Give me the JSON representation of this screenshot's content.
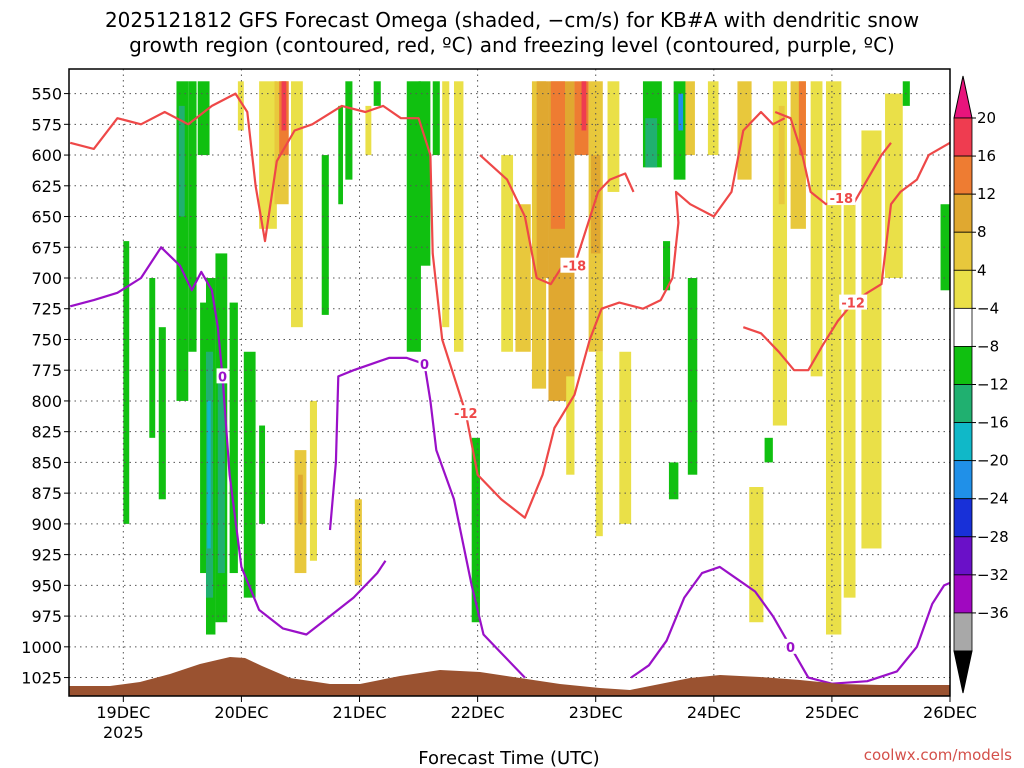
{
  "chart_data": {
    "type": "heatmap",
    "title_line1": "2025121812 GFS Forecast Omega (shaded, −cm/s) for KB#A with dendritic snow",
    "title_line2": "growth region (contoured, red, ºC) and freezing level (contoured, purple, ºC)",
    "xlabel": "Forecast Time (UTC)",
    "credit": "coolwx.com/models",
    "x_start_day": 18.54,
    "x_end_day": 26.0,
    "y_range": [
      530,
      1040
    ],
    "x_ticks": [
      {
        "day": 19,
        "label": "19DEC",
        "sub": "2025"
      },
      {
        "day": 20,
        "label": "20DEC",
        "sub": ""
      },
      {
        "day": 21,
        "label": "21DEC",
        "sub": ""
      },
      {
        "day": 22,
        "label": "22DEC",
        "sub": ""
      },
      {
        "day": 23,
        "label": "23DEC",
        "sub": ""
      },
      {
        "day": 24,
        "label": "24DEC",
        "sub": ""
      },
      {
        "day": 25,
        "label": "25DEC",
        "sub": ""
      },
      {
        "day": 26,
        "label": "26DEC",
        "sub": ""
      }
    ],
    "y_ticks": [
      550,
      575,
      600,
      625,
      650,
      675,
      700,
      725,
      750,
      775,
      800,
      825,
      850,
      875,
      900,
      925,
      950,
      975,
      1000,
      1025
    ],
    "colorbar": {
      "labels": [
        "20",
        "16",
        "12",
        "8",
        "4",
        "−4",
        "−8",
        "−12",
        "−16",
        "−20",
        "−24",
        "−28",
        "−32",
        "−36"
      ],
      "colors": [
        "#ef3c50",
        "#ee7c32",
        "#e0a830",
        "#e8c83c",
        "#eae048",
        "#ffffff",
        "#10c010",
        "#20b070",
        "#10b8c8",
        "#2090e8",
        "#1830d8",
        "#6a10c8",
        "#a008c0",
        "#a8a8a8"
      ],
      "top_color": "#e8147c",
      "bottom_color": "#000000"
    },
    "omega_patches": [
      {
        "x0": 19.0,
        "x1": 19.05,
        "p0": 670,
        "p1": 900,
        "c": "#10c010"
      },
      {
        "x0": 19.22,
        "x1": 19.27,
        "p0": 700,
        "p1": 830,
        "c": "#10c010"
      },
      {
        "x0": 19.3,
        "x1": 19.36,
        "p0": 740,
        "p1": 880,
        "c": "#10c010"
      },
      {
        "x0": 19.45,
        "x1": 19.55,
        "p0": 540,
        "p1": 800,
        "c": "#10c010"
      },
      {
        "x0": 19.47,
        "x1": 19.52,
        "p0": 560,
        "p1": 650,
        "c": "#20b070"
      },
      {
        "x0": 19.55,
        "x1": 19.62,
        "p0": 540,
        "p1": 760,
        "c": "#10c010"
      },
      {
        "x0": 19.63,
        "x1": 19.73,
        "p0": 540,
        "p1": 600,
        "c": "#10c010"
      },
      {
        "x0": 19.65,
        "x1": 19.7,
        "p0": 720,
        "p1": 940,
        "c": "#10c010"
      },
      {
        "x0": 19.7,
        "x1": 19.78,
        "p0": 700,
        "p1": 990,
        "c": "#10c010"
      },
      {
        "x0": 19.7,
        "x1": 19.76,
        "p0": 760,
        "p1": 960,
        "c": "#20b070"
      },
      {
        "x0": 19.71,
        "x1": 19.74,
        "p0": 800,
        "p1": 920,
        "c": "#10b8c8"
      },
      {
        "x0": 19.78,
        "x1": 19.88,
        "p0": 680,
        "p1": 980,
        "c": "#10c010"
      },
      {
        "x0": 19.8,
        "x1": 19.86,
        "p0": 780,
        "p1": 940,
        "c": "#20b070"
      },
      {
        "x0": 19.9,
        "x1": 19.97,
        "p0": 720,
        "p1": 940,
        "c": "#10c010"
      },
      {
        "x0": 19.97,
        "x1": 20.02,
        "p0": 540,
        "p1": 580,
        "c": "#eae048"
      },
      {
        "x0": 20.02,
        "x1": 20.12,
        "p0": 760,
        "p1": 960,
        "c": "#10c010"
      },
      {
        "x0": 20.15,
        "x1": 20.2,
        "p0": 820,
        "p1": 900,
        "c": "#10c010"
      },
      {
        "x0": 20.15,
        "x1": 20.3,
        "p0": 540,
        "p1": 660,
        "c": "#eae048"
      },
      {
        "x0": 20.28,
        "x1": 20.4,
        "p0": 540,
        "p1": 640,
        "c": "#e8c83c"
      },
      {
        "x0": 20.32,
        "x1": 20.4,
        "p0": 540,
        "p1": 600,
        "c": "#ee7c32"
      },
      {
        "x0": 20.34,
        "x1": 20.38,
        "p0": 540,
        "p1": 580,
        "c": "#ef3c50"
      },
      {
        "x0": 20.42,
        "x1": 20.52,
        "p0": 540,
        "p1": 740,
        "c": "#eae048"
      },
      {
        "x0": 20.45,
        "x1": 20.55,
        "p0": 840,
        "p1": 940,
        "c": "#e8c83c"
      },
      {
        "x0": 20.48,
        "x1": 20.52,
        "p0": 860,
        "p1": 900,
        "c": "#e0a830"
      },
      {
        "x0": 20.58,
        "x1": 20.64,
        "p0": 800,
        "p1": 930,
        "c": "#eae048"
      },
      {
        "x0": 20.68,
        "x1": 20.74,
        "p0": 600,
        "p1": 730,
        "c": "#10c010"
      },
      {
        "x0": 20.82,
        "x1": 20.86,
        "p0": 560,
        "p1": 640,
        "c": "#10c010"
      },
      {
        "x0": 20.88,
        "x1": 20.94,
        "p0": 540,
        "p1": 620,
        "c": "#10c010"
      },
      {
        "x0": 20.96,
        "x1": 21.02,
        "p0": 880,
        "p1": 950,
        "c": "#e8c83c"
      },
      {
        "x0": 21.05,
        "x1": 21.1,
        "p0": 560,
        "p1": 600,
        "c": "#eae048"
      },
      {
        "x0": 21.12,
        "x1": 21.18,
        "p0": 540,
        "p1": 560,
        "c": "#10c010"
      },
      {
        "x0": 21.4,
        "x1": 21.52,
        "p0": 540,
        "p1": 760,
        "c": "#10c010"
      },
      {
        "x0": 21.5,
        "x1": 21.6,
        "p0": 540,
        "p1": 690,
        "c": "#10c010"
      },
      {
        "x0": 21.62,
        "x1": 21.68,
        "p0": 540,
        "p1": 600,
        "c": "#10c010"
      },
      {
        "x0": 21.7,
        "x1": 21.76,
        "p0": 540,
        "p1": 740,
        "c": "#eae048"
      },
      {
        "x0": 21.8,
        "x1": 21.88,
        "p0": 540,
        "p1": 760,
        "c": "#eae048"
      },
      {
        "x0": 21.95,
        "x1": 22.02,
        "p0": 830,
        "p1": 980,
        "c": "#10c010"
      },
      {
        "x0": 22.2,
        "x1": 22.3,
        "p0": 600,
        "p1": 760,
        "c": "#eae048"
      },
      {
        "x0": 22.32,
        "x1": 22.45,
        "p0": 640,
        "p1": 760,
        "c": "#e8c83c"
      },
      {
        "x0": 22.46,
        "x1": 22.58,
        "p0": 540,
        "p1": 790,
        "c": "#e8c83c"
      },
      {
        "x0": 22.5,
        "x1": 22.6,
        "p0": 540,
        "p1": 700,
        "c": "#e0a830"
      },
      {
        "x0": 22.6,
        "x1": 22.82,
        "p0": 540,
        "p1": 800,
        "c": "#e0a830"
      },
      {
        "x0": 22.62,
        "x1": 22.74,
        "p0": 540,
        "p1": 660,
        "c": "#ee7c32"
      },
      {
        "x0": 22.75,
        "x1": 22.82,
        "p0": 780,
        "p1": 860,
        "c": "#eae048"
      },
      {
        "x0": 22.82,
        "x1": 22.94,
        "p0": 540,
        "p1": 600,
        "c": "#ee7c32"
      },
      {
        "x0": 22.88,
        "x1": 22.92,
        "p0": 540,
        "p1": 580,
        "c": "#ef3c50"
      },
      {
        "x0": 22.94,
        "x1": 23.06,
        "p0": 540,
        "p1": 760,
        "c": "#e8c83c"
      },
      {
        "x0": 22.96,
        "x1": 23.04,
        "p0": 600,
        "p1": 680,
        "c": "#e0a830"
      },
      {
        "x0": 23.0,
        "x1": 23.06,
        "p0": 760,
        "p1": 910,
        "c": "#eae048"
      },
      {
        "x0": 23.1,
        "x1": 23.2,
        "p0": 540,
        "p1": 630,
        "c": "#eae048"
      },
      {
        "x0": 23.2,
        "x1": 23.3,
        "p0": 760,
        "p1": 900,
        "c": "#eae048"
      },
      {
        "x0": 23.4,
        "x1": 23.56,
        "p0": 540,
        "p1": 610,
        "c": "#10c010"
      },
      {
        "x0": 23.42,
        "x1": 23.52,
        "p0": 570,
        "p1": 610,
        "c": "#20b070"
      },
      {
        "x0": 23.57,
        "x1": 23.63,
        "p0": 670,
        "p1": 710,
        "c": "#10c010"
      },
      {
        "x0": 23.62,
        "x1": 23.7,
        "p0": 850,
        "p1": 880,
        "c": "#10c010"
      },
      {
        "x0": 23.66,
        "x1": 23.76,
        "p0": 540,
        "p1": 620,
        "c": "#10c010"
      },
      {
        "x0": 23.7,
        "x1": 23.74,
        "p0": 550,
        "p1": 580,
        "c": "#2090e8"
      },
      {
        "x0": 23.76,
        "x1": 23.84,
        "p0": 540,
        "p1": 600,
        "c": "#e8c83c"
      },
      {
        "x0": 23.78,
        "x1": 23.86,
        "p0": 700,
        "p1": 860,
        "c": "#10c010"
      },
      {
        "x0": 23.95,
        "x1": 24.04,
        "p0": 540,
        "p1": 600,
        "c": "#eae048"
      },
      {
        "x0": 24.2,
        "x1": 24.32,
        "p0": 540,
        "p1": 620,
        "c": "#e8c83c"
      },
      {
        "x0": 24.3,
        "x1": 24.42,
        "p0": 870,
        "p1": 980,
        "c": "#eae048"
      },
      {
        "x0": 24.43,
        "x1": 24.5,
        "p0": 830,
        "p1": 850,
        "c": "#10c010"
      },
      {
        "x0": 24.5,
        "x1": 24.62,
        "p0": 540,
        "p1": 820,
        "c": "#eae048"
      },
      {
        "x0": 24.55,
        "x1": 24.6,
        "p0": 560,
        "p1": 640,
        "c": "#e8c83c"
      },
      {
        "x0": 24.65,
        "x1": 24.78,
        "p0": 540,
        "p1": 660,
        "c": "#e8c83c"
      },
      {
        "x0": 24.72,
        "x1": 24.78,
        "p0": 540,
        "p1": 600,
        "c": "#ee7c32"
      },
      {
        "x0": 24.82,
        "x1": 24.92,
        "p0": 540,
        "p1": 780,
        "c": "#eae048"
      },
      {
        "x0": 24.95,
        "x1": 25.08,
        "p0": 540,
        "p1": 990,
        "c": "#eae048"
      },
      {
        "x0": 25.1,
        "x1": 25.2,
        "p0": 640,
        "p1": 960,
        "c": "#eae048"
      },
      {
        "x0": 25.25,
        "x1": 25.42,
        "p0": 580,
        "p1": 920,
        "c": "#eae048"
      },
      {
        "x0": 25.45,
        "x1": 25.6,
        "p0": 550,
        "p1": 700,
        "c": "#eae048"
      },
      {
        "x0": 25.6,
        "x1": 25.66,
        "p0": 540,
        "p1": 560,
        "c": "#10c010"
      },
      {
        "x0": 25.92,
        "x1": 26.0,
        "p0": 640,
        "p1": 710,
        "c": "#10c010"
      }
    ],
    "red_contours": [
      {
        "label": "-12",
        "pts": [
          [
            18.55,
            590
          ],
          [
            18.75,
            595
          ],
          [
            18.95,
            570
          ],
          [
            19.15,
            575
          ],
          [
            19.35,
            565
          ],
          [
            19.55,
            575
          ],
          [
            19.75,
            560
          ],
          [
            19.95,
            550
          ],
          [
            20.05,
            565
          ],
          [
            20.12,
            625
          ],
          [
            20.2,
            670
          ],
          [
            20.3,
            605
          ],
          [
            20.45,
            580
          ],
          [
            20.6,
            575
          ],
          [
            20.85,
            560
          ],
          [
            21.05,
            565
          ],
          [
            21.2,
            560
          ],
          [
            21.35,
            570
          ],
          [
            21.5,
            570
          ],
          [
            21.6,
            600
          ],
          [
            21.62,
            680
          ],
          [
            21.7,
            750
          ],
          [
            21.9,
            810
          ],
          [
            22.0,
            860
          ],
          [
            22.2,
            880
          ],
          [
            22.4,
            895
          ],
          [
            22.55,
            860
          ],
          [
            22.65,
            822
          ],
          [
            22.82,
            795
          ],
          [
            22.95,
            750
          ],
          [
            23.05,
            725
          ],
          [
            23.2,
            720
          ],
          [
            23.4,
            725
          ],
          [
            23.55,
            718
          ],
          [
            23.65,
            700
          ],
          [
            23.7,
            655
          ],
          [
            23.68,
            630
          ],
          [
            23.8,
            640
          ],
          [
            24.0,
            650
          ],
          [
            24.15,
            630
          ],
          [
            24.25,
            580
          ],
          [
            24.4,
            565
          ],
          [
            24.5,
            575
          ],
          [
            24.6,
            570
          ]
        ]
      },
      {
        "label": "-18",
        "pts": [
          [
            22.02,
            600
          ],
          [
            22.25,
            620
          ],
          [
            22.4,
            650
          ],
          [
            22.5,
            700
          ],
          [
            22.62,
            705
          ],
          [
            22.72,
            690
          ],
          [
            22.82,
            690
          ],
          [
            22.92,
            660
          ],
          [
            23.02,
            630
          ],
          [
            23.12,
            620
          ],
          [
            23.25,
            615
          ],
          [
            23.32,
            630
          ]
        ]
      },
      {
        "label": "-18",
        "pts": [
          [
            24.52,
            565
          ],
          [
            24.65,
            570
          ],
          [
            24.75,
            600
          ],
          [
            24.82,
            630
          ],
          [
            24.95,
            640
          ],
          [
            25.08,
            635
          ],
          [
            25.18,
            640
          ],
          [
            25.3,
            620
          ],
          [
            25.42,
            600
          ],
          [
            25.5,
            590
          ]
        ]
      },
      {
        "label": "-12",
        "pts": [
          [
            24.25,
            740
          ],
          [
            24.4,
            745
          ],
          [
            24.55,
            760
          ],
          [
            24.68,
            775
          ],
          [
            24.8,
            775
          ],
          [
            24.92,
            755
          ],
          [
            25.05,
            735
          ],
          [
            25.18,
            720
          ],
          [
            25.3,
            712
          ],
          [
            25.42,
            705
          ],
          [
            25.5,
            640
          ],
          [
            25.58,
            630
          ],
          [
            25.72,
            620
          ],
          [
            25.82,
            600
          ],
          [
            26.0,
            590
          ]
        ]
      }
    ],
    "purple_contours": [
      {
        "label": "0",
        "pts": [
          [
            18.55,
            723
          ],
          [
            18.75,
            718
          ],
          [
            18.95,
            712
          ],
          [
            19.15,
            700
          ],
          [
            19.32,
            675
          ],
          [
            19.48,
            690
          ],
          [
            19.58,
            710
          ],
          [
            19.66,
            695
          ],
          [
            19.75,
            710
          ],
          [
            19.8,
            740
          ],
          [
            19.84,
            780
          ],
          [
            19.9,
            860
          ],
          [
            20.0,
            935
          ],
          [
            20.15,
            970
          ],
          [
            20.35,
            985
          ],
          [
            20.55,
            990
          ],
          [
            20.75,
            975
          ],
          [
            20.95,
            960
          ],
          [
            21.15,
            940
          ],
          [
            21.22,
            930
          ]
        ]
      },
      {
        "label": "0",
        "pts": [
          [
            20.75,
            905
          ],
          [
            20.8,
            850
          ],
          [
            20.82,
            780
          ],
          [
            20.95,
            775
          ],
          [
            21.1,
            770
          ],
          [
            21.25,
            765
          ],
          [
            21.4,
            765
          ],
          [
            21.55,
            770
          ],
          [
            21.6,
            800
          ],
          [
            21.65,
            840
          ],
          [
            21.8,
            880
          ],
          [
            21.95,
            950
          ],
          [
            22.05,
            990
          ],
          [
            22.2,
            1005
          ],
          [
            22.4,
            1025
          ]
        ]
      },
      {
        "label": "0",
        "pts": [
          [
            23.3,
            1025
          ],
          [
            23.45,
            1015
          ],
          [
            23.6,
            995
          ],
          [
            23.75,
            960
          ],
          [
            23.9,
            940
          ],
          [
            24.05,
            935
          ],
          [
            24.2,
            945
          ],
          [
            24.35,
            955
          ],
          [
            24.5,
            975
          ],
          [
            24.65,
            1000
          ],
          [
            24.8,
            1025
          ],
          [
            25.0,
            1030
          ],
          [
            25.3,
            1028
          ],
          [
            25.55,
            1020
          ],
          [
            25.72,
            1000
          ],
          [
            25.85,
            965
          ],
          [
            25.95,
            950
          ],
          [
            26.0,
            948
          ]
        ]
      }
    ]
  }
}
